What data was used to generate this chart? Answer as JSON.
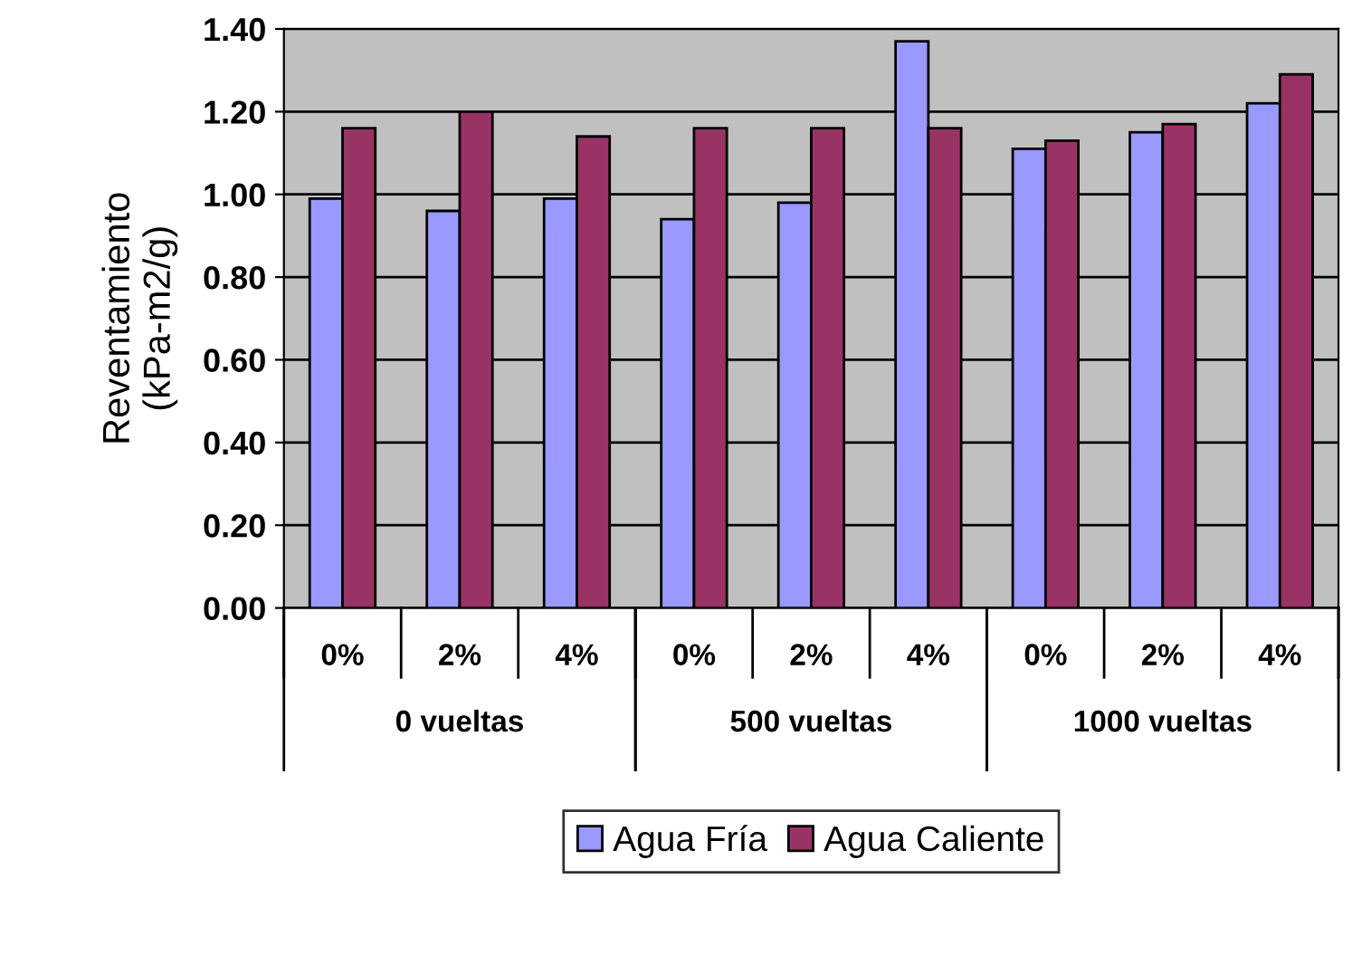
{
  "chart_data": {
    "type": "bar",
    "ylabel": "Reventamiento\n(kPa-m2/g)",
    "categories": [
      "0%",
      "2%",
      "4%",
      "0%",
      "2%",
      "4%",
      "0%",
      "2%",
      "4%"
    ],
    "annotations": [
      "0 vueltas",
      "500 vueltas",
      "1000 vueltas"
    ],
    "series": [
      {
        "name": "Agua Fría",
        "color": "#9999ff",
        "values": [
          0.99,
          0.96,
          0.99,
          0.94,
          0.98,
          1.37,
          1.11,
          1.15,
          1.22
        ]
      },
      {
        "name": "Agua Caliente",
        "color": "#993366",
        "values": [
          1.16,
          1.2,
          1.14,
          1.16,
          1.16,
          1.16,
          1.13,
          1.17,
          1.29
        ]
      }
    ],
    "ylim": [
      0,
      1.4
    ],
    "yticks": [
      {
        "value": 0,
        "label": "0.00"
      },
      {
        "value": 0.2,
        "label": "0.20"
      },
      {
        "value": 0.4,
        "label": "0.40"
      },
      {
        "value": 0.6,
        "label": "0.60"
      },
      {
        "value": 0.8,
        "label": "0.80"
      },
      {
        "value": 1,
        "label": "1.00"
      },
      {
        "value": 1.2,
        "label": "1.20"
      },
      {
        "value": 1.4,
        "label": "1.40"
      }
    ],
    "grid": "y",
    "legend": "bottom"
  }
}
